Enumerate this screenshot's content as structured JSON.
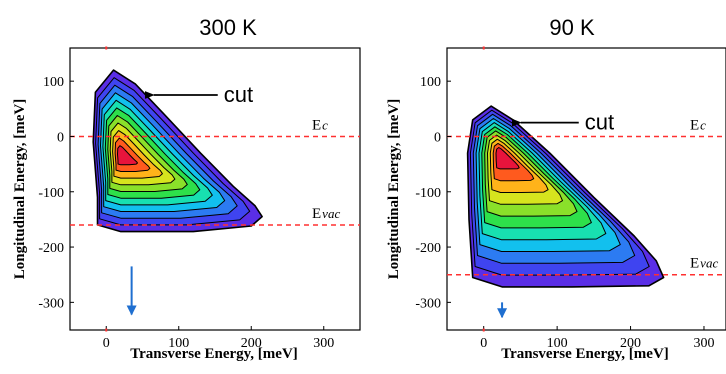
{
  "chart_data": [
    {
      "type": "heatmap",
      "title": "300 K",
      "xlabel": "Transverse Energy, [meV]",
      "ylabel": "Longitudinal Energy, [meV]",
      "xlim": [
        -50,
        350
      ],
      "ylim": [
        -350,
        160
      ],
      "xticks": [
        0,
        100,
        200,
        300
      ],
      "yticks": [
        100,
        0,
        -100,
        -200,
        -300
      ],
      "peak": {
        "x": 20,
        "y": -35
      },
      "outline": [
        {
          "x": 10,
          "y": 120
        },
        {
          "x": 40,
          "y": 95
        },
        {
          "x": 80,
          "y": 40
        },
        {
          "x": 130,
          "y": -30
        },
        {
          "x": 175,
          "y": -90
        },
        {
          "x": 205,
          "y": -125
        },
        {
          "x": 215,
          "y": -145
        },
        {
          "x": 200,
          "y": -162
        },
        {
          "x": 120,
          "y": -172
        },
        {
          "x": 20,
          "y": -172
        },
        {
          "x": -12,
          "y": -160
        },
        {
          "x": -12,
          "y": -110
        },
        {
          "x": -18,
          "y": -10
        },
        {
          "x": -15,
          "y": 80
        }
      ],
      "reference_lines": [
        {
          "label_main": "E",
          "label_sub": "c",
          "y": 0
        },
        {
          "label_main": "E",
          "label_sub": "vac",
          "y": -160
        }
      ],
      "annotation": {
        "text": "cut",
        "target": {
          "x": 60,
          "y": 75
        }
      },
      "marker_arrow": {
        "x": 35,
        "y_from": -235,
        "y_to": -340
      }
    },
    {
      "type": "heatmap",
      "title": "90 K",
      "xlabel": "Transverse Energy, [meV]",
      "ylabel": "Longitudinal Energy, [meV]",
      "xlim": [
        -50,
        330
      ],
      "ylim": [
        -350,
        160
      ],
      "xticks": [
        0,
        100,
        200,
        300
      ],
      "yticks": [
        100,
        0,
        -100,
        -200,
        -300
      ],
      "peak": {
        "x": 22,
        "y": -30
      },
      "outline": [
        {
          "x": 10,
          "y": 55
        },
        {
          "x": 40,
          "y": 30
        },
        {
          "x": 90,
          "y": -30
        },
        {
          "x": 150,
          "y": -110
        },
        {
          "x": 205,
          "y": -180
        },
        {
          "x": 235,
          "y": -225
        },
        {
          "x": 245,
          "y": -255
        },
        {
          "x": 225,
          "y": -270
        },
        {
          "x": 120,
          "y": -272
        },
        {
          "x": 25,
          "y": -272
        },
        {
          "x": -15,
          "y": -255
        },
        {
          "x": -20,
          "y": -150
        },
        {
          "x": -22,
          "y": -30
        },
        {
          "x": -15,
          "y": 30
        }
      ],
      "reference_lines": [
        {
          "label_main": "E",
          "label_sub": "c",
          "y": 0
        },
        {
          "label_main": "E",
          "label_sub": "vac",
          "y": -250
        }
      ],
      "annotation": {
        "text": "cut",
        "target": {
          "x": 45,
          "y": 25
        }
      },
      "marker_arrow": {
        "x": 25,
        "y_from": -300,
        "y_to": -345
      }
    }
  ],
  "colors": {
    "ref_line": "#ff3030",
    "arrow": "#1f6fd0",
    "contour": "#000000",
    "palette": [
      "#5a2ee6",
      "#3f44f0",
      "#2c7bf2",
      "#12c0ee",
      "#18e0b0",
      "#2ee04a",
      "#8ae02a",
      "#d6e41e",
      "#ffb31a",
      "#ff5a1e",
      "#e8143c"
    ]
  }
}
